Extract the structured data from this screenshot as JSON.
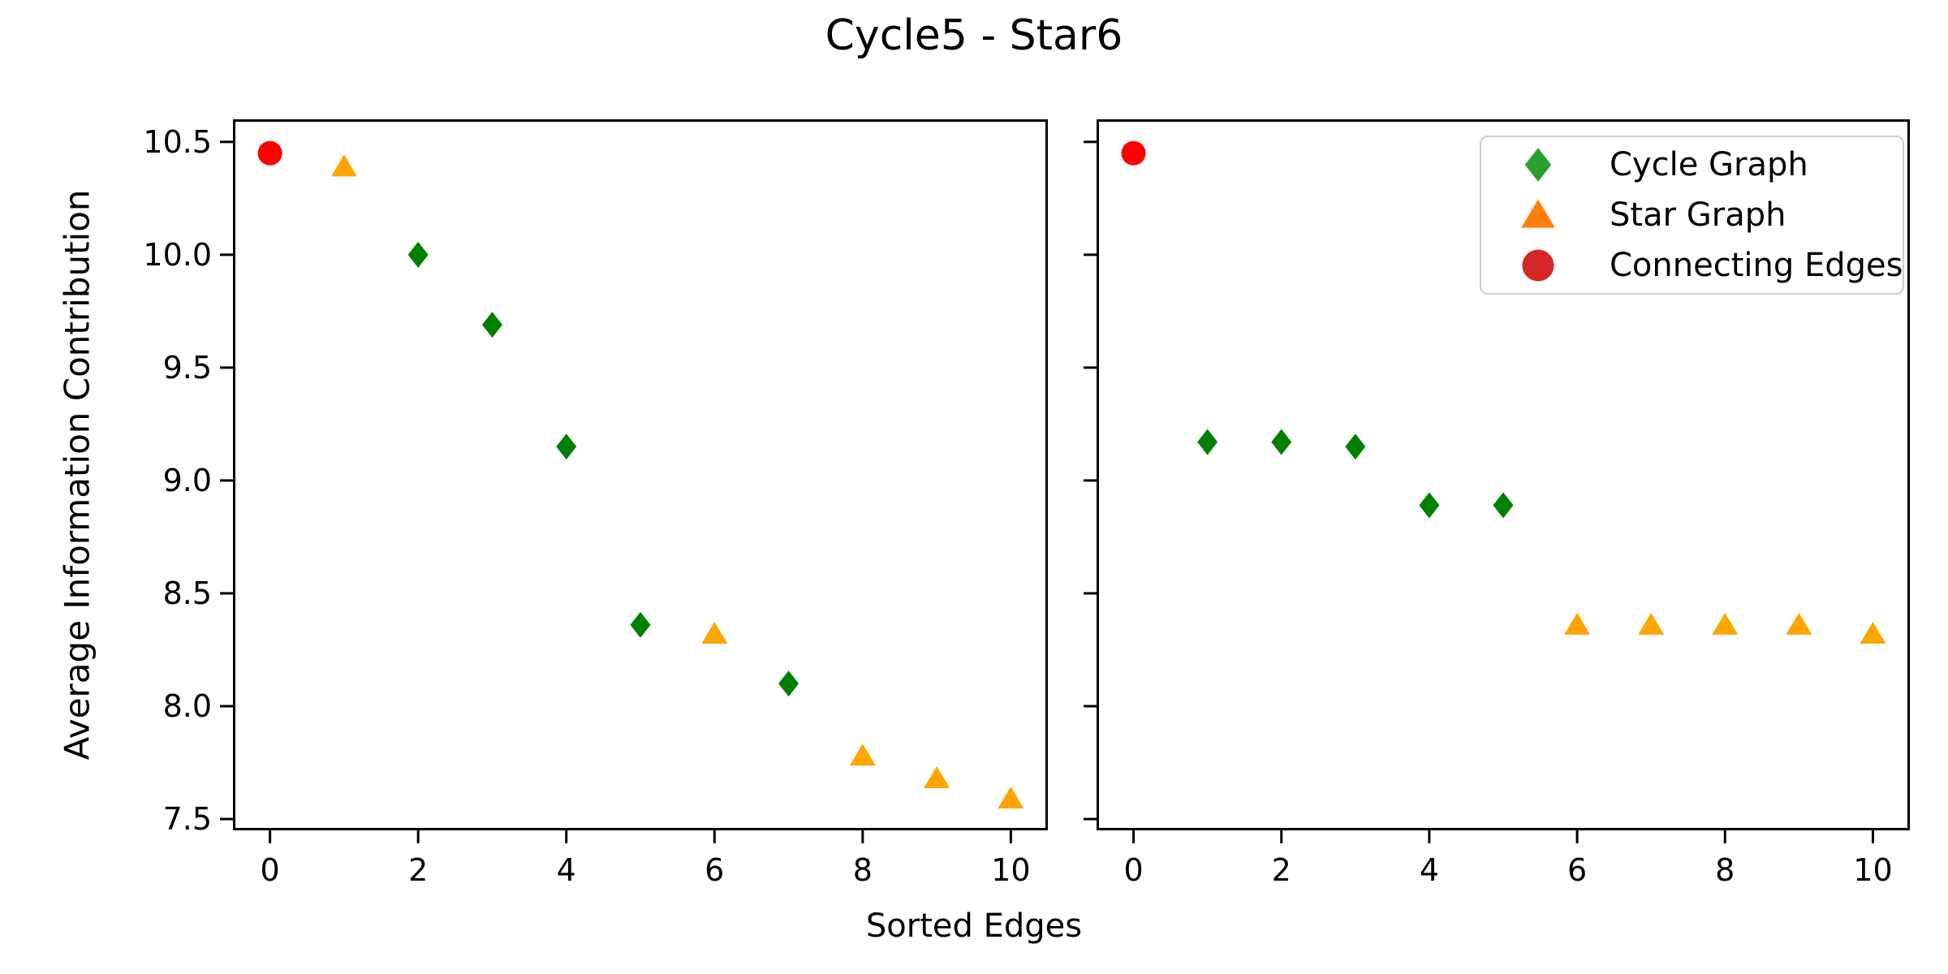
{
  "figure": {
    "title": "Cycle5 - Star6",
    "xlabel": "Sorted Edges",
    "ylabel": "Average Information Contribution"
  },
  "legend": {
    "position": "upper right",
    "entries": [
      {
        "label": "Cycle Graph",
        "marker": "diamond",
        "color": "#2ca02c"
      },
      {
        "label": "Star Graph",
        "marker": "triangle",
        "color": "#ff7f0e"
      },
      {
        "label": "Connecting Edges",
        "marker": "circle",
        "color": "#d62728"
      }
    ]
  },
  "chart_data": [
    {
      "type": "scatter",
      "subplot": "left",
      "title": "",
      "xlabel_shared": "Sorted Edges",
      "xlim": [
        -0.5,
        10.5
      ],
      "ylim": [
        7.45,
        10.6
      ],
      "grid": false,
      "x_ticks": [
        0,
        2,
        4,
        6,
        8,
        10
      ],
      "x_tick_labels": [
        "0",
        "2",
        "4",
        "6",
        "8",
        "10"
      ],
      "y_ticks": [
        7.5,
        8.0,
        8.5,
        9.0,
        9.5,
        10.0,
        10.5
      ],
      "y_tick_labels": [
        "7.5",
        "8.0",
        "8.5",
        "9.0",
        "9.5",
        "10.0",
        "10.5"
      ],
      "show_y_tick_labels": true,
      "legend": false,
      "series": [
        {
          "name": "Cycle Graph",
          "marker": "diamond",
          "color": "#008000",
          "points": [
            [
              2,
              10.0
            ],
            [
              3,
              9.69
            ],
            [
              4,
              9.15
            ],
            [
              5,
              8.36
            ],
            [
              7,
              8.1
            ]
          ]
        },
        {
          "name": "Star Graph",
          "marker": "triangle",
          "color": "#ffa500",
          "points": [
            [
              1,
              10.39
            ],
            [
              6,
              8.32
            ],
            [
              8,
              7.78
            ],
            [
              9,
              7.68
            ],
            [
              10,
              7.59
            ]
          ]
        },
        {
          "name": "Connecting Edges",
          "marker": "circle",
          "color": "#ff0000",
          "points": [
            [
              0,
              10.45
            ]
          ]
        }
      ]
    },
    {
      "type": "scatter",
      "subplot": "right",
      "title": "",
      "xlabel_shared": "Sorted Edges",
      "xlim": [
        -0.5,
        10.5
      ],
      "ylim": [
        7.45,
        10.6
      ],
      "grid": false,
      "x_ticks": [
        0,
        2,
        4,
        6,
        8,
        10
      ],
      "x_tick_labels": [
        "0",
        "2",
        "4",
        "6",
        "8",
        "10"
      ],
      "y_ticks": [
        7.5,
        8.0,
        8.5,
        9.0,
        9.5,
        10.0,
        10.5
      ],
      "y_tick_labels": [
        "7.5",
        "8.0",
        "8.5",
        "9.0",
        "9.5",
        "10.0",
        "10.5"
      ],
      "show_y_tick_labels": false,
      "legend": true,
      "series": [
        {
          "name": "Cycle Graph",
          "marker": "diamond",
          "color": "#008000",
          "points": [
            [
              1,
              9.17
            ],
            [
              2,
              9.17
            ],
            [
              3,
              9.15
            ],
            [
              4,
              8.89
            ],
            [
              5,
              8.89
            ]
          ]
        },
        {
          "name": "Star Graph",
          "marker": "triangle",
          "color": "#ffa500",
          "points": [
            [
              6,
              8.36
            ],
            [
              7,
              8.36
            ],
            [
              8,
              8.36
            ],
            [
              9,
              8.36
            ],
            [
              10,
              8.32
            ]
          ]
        },
        {
          "name": "Connecting Edges",
          "marker": "circle",
          "color": "#ff0000",
          "points": [
            [
              0,
              10.45
            ]
          ]
        }
      ]
    }
  ]
}
